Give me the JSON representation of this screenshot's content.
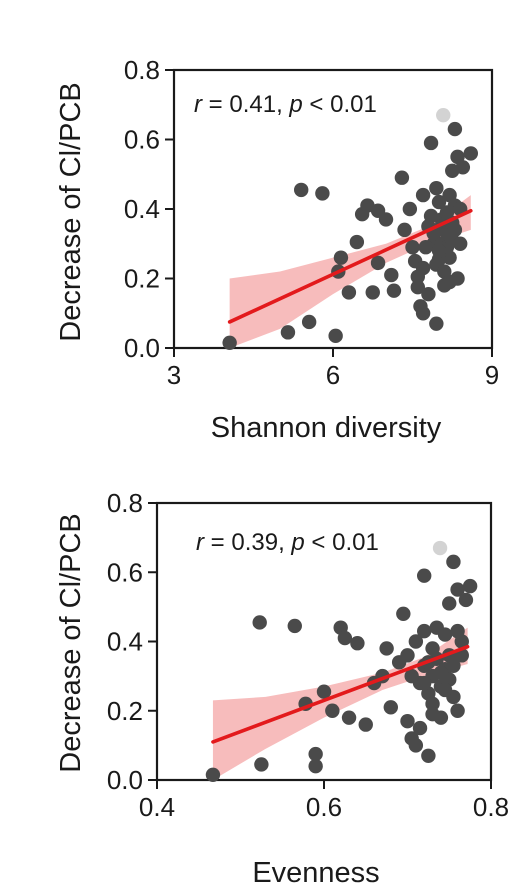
{
  "chart_data": [
    {
      "type": "scatter",
      "title": "",
      "xlabel": "Shannon diversity",
      "ylabel": "Decrease of Cl/PCB",
      "xlim": [
        3,
        9
      ],
      "ylim": [
        0,
        0.8
      ],
      "xticks": [
        3,
        6,
        9
      ],
      "xtick_labels": [
        "3",
        "6",
        "9"
      ],
      "yticks": [
        0,
        0.2,
        0.4,
        0.6,
        0.8
      ],
      "ytick_labels": [
        "0.0",
        "0.2",
        "0.4",
        "0.6",
        "0.8"
      ],
      "grid": false,
      "annotation": {
        "r_symbol": "r",
        "r_text": " = 0.41, ",
        "p_symbol": "p",
        "p_text": " < 0.01"
      },
      "colors": {
        "points": "#4a4a4a",
        "highlight_point": "#d3d3d3",
        "fit_line": "#e31a1c",
        "band": "#f4a6a6"
      },
      "fit": {
        "x": [
          4.05,
          8.6
        ],
        "y": [
          0.075,
          0.395
        ]
      },
      "band": {
        "x": [
          4.05,
          5.0,
          6.0,
          7.0,
          7.8,
          8.6
        ],
        "lower": [
          -0.08,
          0.055,
          0.155,
          0.245,
          0.3,
          0.34
        ],
        "upper": [
          0.2,
          0.22,
          0.26,
          0.3,
          0.35,
          0.44
        ]
      },
      "highlight": {
        "x": 8.08,
        "y": 0.67
      },
      "points": [
        [
          4.05,
          0.015
        ],
        [
          5.15,
          0.045
        ],
        [
          5.55,
          0.075
        ],
        [
          6.05,
          0.035
        ],
        [
          5.4,
          0.455
        ],
        [
          5.8,
          0.445
        ],
        [
          6.15,
          0.26
        ],
        [
          6.1,
          0.22
        ],
        [
          6.3,
          0.16
        ],
        [
          6.45,
          0.305
        ],
        [
          6.55,
          0.385
        ],
        [
          6.65,
          0.41
        ],
        [
          6.85,
          0.395
        ],
        [
          6.85,
          0.245
        ],
        [
          6.75,
          0.16
        ],
        [
          7.0,
          0.37
        ],
        [
          7.1,
          0.21
        ],
        [
          7.15,
          0.165
        ],
        [
          7.3,
          0.49
        ],
        [
          7.35,
          0.34
        ],
        [
          7.45,
          0.4
        ],
        [
          7.5,
          0.29
        ],
        [
          7.55,
          0.25
        ],
        [
          7.6,
          0.205
        ],
        [
          7.6,
          0.175
        ],
        [
          7.65,
          0.12
        ],
        [
          7.7,
          0.1
        ],
        [
          7.7,
          0.44
        ],
        [
          7.8,
          0.155
        ],
        [
          7.8,
          0.35
        ],
        [
          7.85,
          0.59
        ],
        [
          7.9,
          0.3
        ],
        [
          7.95,
          0.24
        ],
        [
          7.95,
          0.07
        ],
        [
          7.95,
          0.46
        ],
        [
          8.0,
          0.42
        ],
        [
          8.05,
          0.37
        ],
        [
          8.05,
          0.35
        ],
        [
          8.05,
          0.3
        ],
        [
          8.1,
          0.27
        ],
        [
          8.1,
          0.22
        ],
        [
          8.1,
          0.18
        ],
        [
          8.15,
          0.33
        ],
        [
          8.15,
          0.29
        ],
        [
          8.15,
          0.39
        ],
        [
          8.2,
          0.44
        ],
        [
          8.2,
          0.26
        ],
        [
          8.25,
          0.51
        ],
        [
          8.25,
          0.36
        ],
        [
          8.25,
          0.31
        ],
        [
          8.3,
          0.63
        ],
        [
          8.3,
          0.41
        ],
        [
          8.35,
          0.55
        ],
        [
          8.35,
          0.2
        ],
        [
          8.4,
          0.3
        ],
        [
          8.45,
          0.52
        ],
        [
          8.6,
          0.56
        ],
        [
          7.9,
          0.33
        ],
        [
          8.0,
          0.255
        ],
        [
          8.2,
          0.19
        ],
        [
          7.75,
          0.29
        ],
        [
          8.0,
          0.28
        ],
        [
          8.3,
          0.34
        ],
        [
          8.4,
          0.4
        ],
        [
          7.85,
          0.38
        ],
        [
          7.7,
          0.23
        ]
      ]
    },
    {
      "type": "scatter",
      "title": "",
      "xlabel": "Evenness",
      "ylabel": "Decrease of Cl/PCB",
      "xlim": [
        0.4,
        0.8
      ],
      "ylim": [
        0,
        0.8
      ],
      "xticks": [
        0.4,
        0.6,
        0.8
      ],
      "xtick_labels": [
        "0.4",
        "0.6",
        "0.8"
      ],
      "yticks": [
        0,
        0.2,
        0.4,
        0.6,
        0.8
      ],
      "ytick_labels": [
        "0.0",
        "0.2",
        "0.4",
        "0.6",
        "0.8"
      ],
      "grid": false,
      "annotation": {
        "r_symbol": "r",
        "r_text": " = 0.39, ",
        "p_symbol": "p",
        "p_text": " < 0.01"
      },
      "colors": {
        "points": "#4a4a4a",
        "highlight_point": "#d3d3d3",
        "fit_line": "#e31a1c",
        "band": "#f4a6a6"
      },
      "fit": {
        "x": [
          0.467,
          0.772
        ],
        "y": [
          0.11,
          0.385
        ]
      },
      "band": {
        "x": [
          0.467,
          0.53,
          0.6,
          0.67,
          0.72,
          0.772
        ],
        "lower": [
          -0.02,
          0.09,
          0.18,
          0.26,
          0.3,
          0.335
        ],
        "upper": [
          0.23,
          0.24,
          0.27,
          0.31,
          0.355,
          0.44
        ]
      },
      "highlight": {
        "x": 0.739,
        "y": 0.67
      },
      "points": [
        [
          0.467,
          0.015
        ],
        [
          0.525,
          0.045
        ],
        [
          0.59,
          0.04
        ],
        [
          0.59,
          0.075
        ],
        [
          0.523,
          0.455
        ],
        [
          0.565,
          0.445
        ],
        [
          0.578,
          0.22
        ],
        [
          0.6,
          0.255
        ],
        [
          0.61,
          0.2
        ],
        [
          0.62,
          0.44
        ],
        [
          0.625,
          0.41
        ],
        [
          0.64,
          0.395
        ],
        [
          0.63,
          0.18
        ],
        [
          0.65,
          0.16
        ],
        [
          0.66,
          0.28
        ],
        [
          0.67,
          0.3
        ],
        [
          0.675,
          0.38
        ],
        [
          0.68,
          0.21
        ],
        [
          0.69,
          0.34
        ],
        [
          0.695,
          0.48
        ],
        [
          0.7,
          0.36
        ],
        [
          0.7,
          0.17
        ],
        [
          0.705,
          0.12
        ],
        [
          0.71,
          0.1
        ],
        [
          0.71,
          0.4
        ],
        [
          0.715,
          0.28
        ],
        [
          0.715,
          0.15
        ],
        [
          0.72,
          0.59
        ],
        [
          0.72,
          0.43
        ],
        [
          0.72,
          0.33
        ],
        [
          0.725,
          0.25
        ],
        [
          0.725,
          0.07
        ],
        [
          0.73,
          0.38
        ],
        [
          0.73,
          0.3
        ],
        [
          0.73,
          0.22
        ],
        [
          0.735,
          0.44
        ],
        [
          0.735,
          0.35
        ],
        [
          0.74,
          0.27
        ],
        [
          0.74,
          0.18
        ],
        [
          0.745,
          0.32
        ],
        [
          0.745,
          0.42
        ],
        [
          0.75,
          0.51
        ],
        [
          0.75,
          0.36
        ],
        [
          0.75,
          0.29
        ],
        [
          0.755,
          0.63
        ],
        [
          0.755,
          0.24
        ],
        [
          0.76,
          0.55
        ],
        [
          0.76,
          0.43
        ],
        [
          0.76,
          0.2
        ],
        [
          0.765,
          0.4
        ],
        [
          0.77,
          0.52
        ],
        [
          0.775,
          0.56
        ],
        [
          0.725,
          0.34
        ],
        [
          0.74,
          0.31
        ],
        [
          0.745,
          0.26
        ],
        [
          0.73,
          0.19
        ],
        [
          0.72,
          0.28
        ],
        [
          0.755,
          0.33
        ],
        [
          0.765,
          0.36
        ],
        [
          0.705,
          0.3
        ]
      ]
    }
  ]
}
